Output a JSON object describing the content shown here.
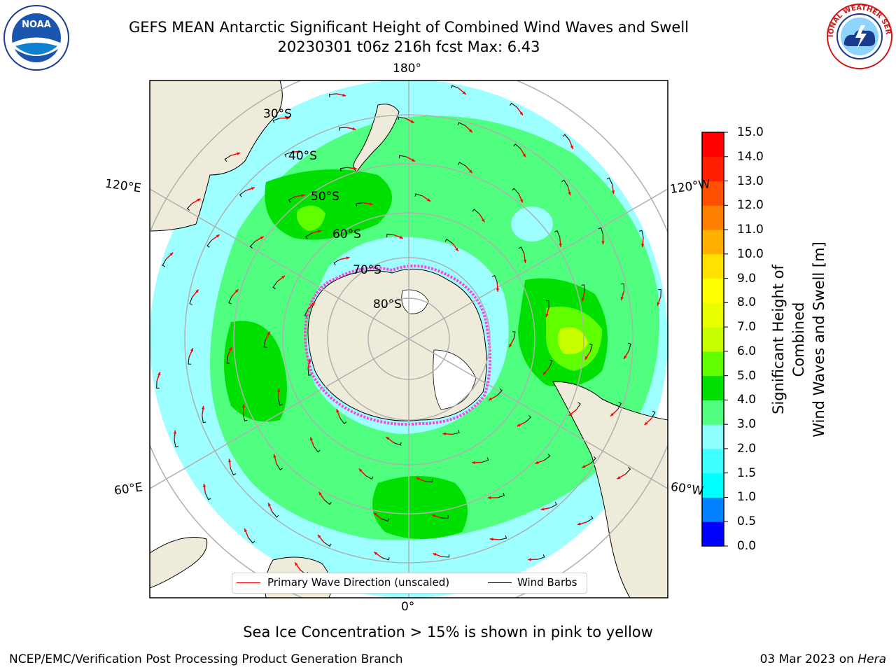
{
  "title_line1": "GEFS MEAN Antarctic Significant Height of Combined Wind Waves and Swell",
  "title_line2": "20230301 t06z 216h fcst   Max: 6.43",
  "longitude_labels": {
    "top": "180°",
    "bottom": "0°",
    "upper_left": "120°E",
    "upper_right": "120°W",
    "lower_left": "60°E",
    "lower_right": "60°W"
  },
  "latitude_labels": [
    "30°S",
    "40°S",
    "50°S",
    "60°S",
    "70°S",
    "80°S"
  ],
  "colorbar": {
    "title_line1": "Significant Height of Combined",
    "title_line2": "Wind Waves and Swell [m]",
    "ticks": [
      "0.0",
      "0.5",
      "1.0",
      "1.5",
      "2.0",
      "3.0",
      "4.0",
      "5.0",
      "6.0",
      "7.0",
      "8.0",
      "9.0",
      "10.0",
      "11.0",
      "12.0",
      "13.0",
      "14.0",
      "15.0"
    ],
    "colors": [
      "#0000ff",
      "#0080ff",
      "#00ffff",
      "#40ffff",
      "#90ffff",
      "#50ff80",
      "#00e000",
      "#60ff00",
      "#c8ff00",
      "#e8ff00",
      "#ffff00",
      "#ffe000",
      "#ffb000",
      "#ff8000",
      "#ff5000",
      "#ff2000",
      "#ff0000"
    ]
  },
  "legend": {
    "wave_dir_label": "Primary Wave Direction (unscaled)",
    "wind_barb_label": "Wind Barbs",
    "wave_dir_color": "#ff0000",
    "wind_barb_color": "#000000"
  },
  "ice_note": "Sea Ice Concentration > 15% is shown in pink to yellow",
  "footer_left": "NCEP/EMC/Verification Post Processing Product Generation Branch",
  "footer_date": "03 Mar 2023 on",
  "footer_host": "Hera",
  "logos": {
    "left": "NOAA",
    "right": "NATIONAL WEATHER SERVICE"
  },
  "colors": {
    "land": "#efebda",
    "ice": "#ff44dd",
    "ocean_low": "#9dffff",
    "ocean_mid": "#50ff80",
    "ocean_high": "#00e000"
  }
}
